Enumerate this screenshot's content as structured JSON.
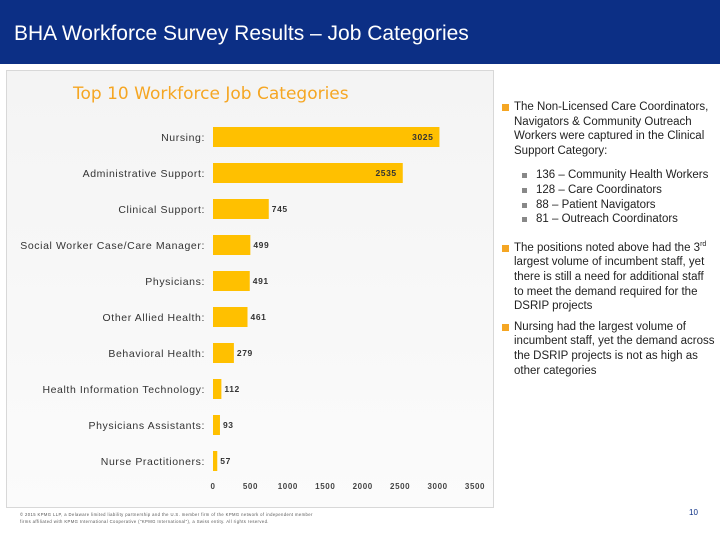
{
  "header": {
    "title": "BHA Workforce Survey Results – Job Categories"
  },
  "chart_data": {
    "type": "bar",
    "orientation": "horizontal",
    "title": "Top 10 Workforce Job Categories",
    "categories": [
      "Nursing:",
      "Administrative Support:",
      "Clinical Support:",
      "Social Worker Case/Care Manager:",
      "Physicians:",
      "Other Allied Health:",
      "Behavioral Health:",
      "Health Information Technology:",
      "Physicians Assistants:",
      "Nurse Practitioners:"
    ],
    "values": [
      3025,
      2535,
      745,
      499,
      491,
      461,
      279,
      112,
      93,
      57
    ],
    "value_labels": [
      "3025",
      "2535",
      "745",
      "499",
      "491",
      "461",
      "279",
      "112",
      "93",
      "57"
    ],
    "xlim": [
      0,
      3500
    ],
    "xticks": [
      0,
      500,
      1000,
      1500,
      2000,
      2500,
      3000,
      3500
    ],
    "xtick_labels": [
      "0",
      "500",
      "1000",
      "1500",
      "2000",
      "2500",
      "3000",
      "3500"
    ],
    "grid": false,
    "legend": "none",
    "bar_color": "#ffc000"
  },
  "notes": {
    "note1": "The Non-Licensed Care Coordinators, Navigators & Community Outreach Workers were captured in the Clinical Support Category:",
    "sub_items": [
      "136 – Community Health Workers",
      "128 – Care Coordinators",
      "88 – Patient Navigators",
      "81 – Outreach Coordinators"
    ],
    "note2_part1": "The positions noted above had the 3",
    "note2_sup": "rd",
    "note2_part2": " largest volume of incumbent staff, yet there is still a need for additional staff to meet the demand required for the DSRIP projects",
    "note3": "Nursing had the largest volume of incumbent staff, yet the demand across the DSRIP projects is not as high as other categories"
  },
  "footer": {
    "line1": "© 2015 KPMG LLP, a Delaware limited liability partnership and the U.S. member firm of the KPMG network of independent member",
    "line2": "firms affiliated with KPMG International Cooperative (\"KPMG International\"), a Swiss entity. All rights reserved."
  },
  "page_number": "10",
  "colors": {
    "header_bg": "#0c2f85",
    "accent": "#f5a623",
    "bar": "#ffc000"
  }
}
